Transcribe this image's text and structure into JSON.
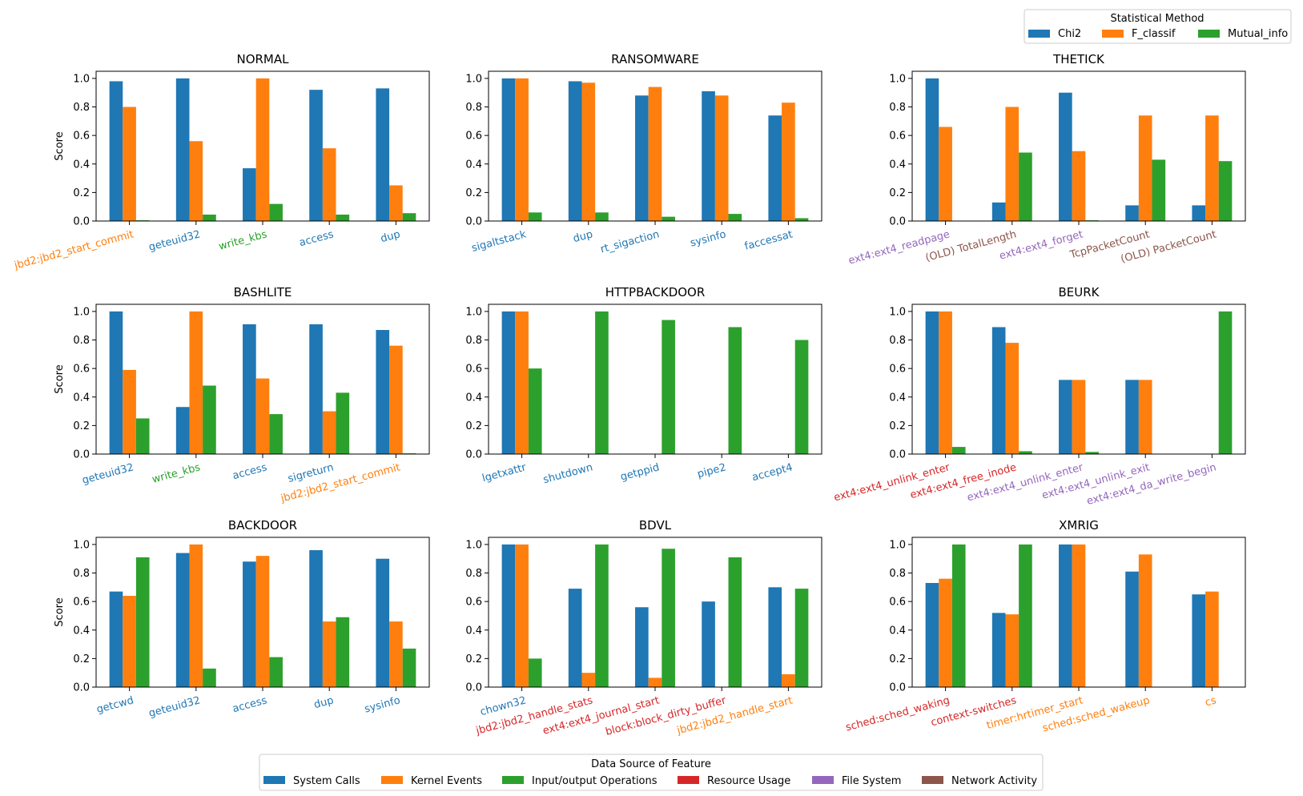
{
  "colors": {
    "chi2": "#1f77b4",
    "f_classif": "#ff7f0e",
    "mutual_info": "#2ca02c",
    "source_system_calls": "#1f77b4",
    "source_kernel_events": "#ff7f0e",
    "source_io_operations": "#2ca02c",
    "source_resource_usage": "#d62728",
    "source_file_system": "#9467bd",
    "source_network_activity": "#8c564b"
  },
  "method_legend": {
    "title": "Statistical Method",
    "entries": [
      {
        "label": "Chi2",
        "color_key": "chi2"
      },
      {
        "label": "F_classif",
        "color_key": "f_classif"
      },
      {
        "label": "Mutual_info",
        "color_key": "mutual_info"
      }
    ]
  },
  "source_legend": {
    "title": "Data Source of Feature",
    "entries": [
      {
        "label": "System Calls",
        "color_key": "source_system_calls"
      },
      {
        "label": "Kernel Events",
        "color_key": "source_kernel_events"
      },
      {
        "label": "Input/output Operations",
        "color_key": "source_io_operations"
      },
      {
        "label": "Resource Usage",
        "color_key": "source_resource_usage"
      },
      {
        "label": "File System",
        "color_key": "source_file_system"
      },
      {
        "label": "Network Activity",
        "color_key": "source_network_activity"
      }
    ]
  },
  "chart_data": [
    {
      "type": "bar",
      "title": "NORMAL",
      "ylabel": "Score",
      "ylim": [
        0,
        1.05
      ],
      "yticks": [
        "0.0",
        "0.2",
        "0.4",
        "0.6",
        "0.8",
        "1.0"
      ],
      "categories": [
        "jbd2:jbd2_start_commit",
        "geteuid32",
        "write_kbs",
        "access",
        "dup"
      ],
      "category_sources": [
        "source_kernel_events",
        "source_system_calls",
        "source_io_operations",
        "source_system_calls",
        "source_system_calls"
      ],
      "series": [
        {
          "name": "Chi2",
          "values": [
            0.98,
            1.0,
            0.37,
            0.92,
            0.93
          ]
        },
        {
          "name": "F_classif",
          "values": [
            0.8,
            0.56,
            1.0,
            0.51,
            0.25
          ]
        },
        {
          "name": "Mutual_info",
          "values": [
            0.005,
            0.045,
            0.12,
            0.045,
            0.055
          ]
        }
      ]
    },
    {
      "type": "bar",
      "title": "RANSOMWARE",
      "ylabel": "",
      "ylim": [
        0,
        1.05
      ],
      "yticks": [
        "0.0",
        "0.2",
        "0.4",
        "0.6",
        "0.8",
        "1.0"
      ],
      "categories": [
        "sigaltstack",
        "dup",
        "rt_sigaction",
        "sysinfo",
        "faccessat"
      ],
      "category_sources": [
        "source_system_calls",
        "source_system_calls",
        "source_system_calls",
        "source_system_calls",
        "source_system_calls"
      ],
      "series": [
        {
          "name": "Chi2",
          "values": [
            1.0,
            0.98,
            0.88,
            0.91,
            0.74
          ]
        },
        {
          "name": "F_classif",
          "values": [
            1.0,
            0.97,
            0.94,
            0.88,
            0.83
          ]
        },
        {
          "name": "Mutual_info",
          "values": [
            0.06,
            0.06,
            0.03,
            0.05,
            0.02
          ]
        }
      ]
    },
    {
      "type": "bar",
      "title": "THETICK",
      "ylabel": "",
      "ylim": [
        0,
        1.05
      ],
      "yticks": [
        "0.0",
        "0.2",
        "0.4",
        "0.6",
        "0.8",
        "1.0"
      ],
      "categories": [
        "ext4:ext4_readpage",
        "(OLD) TotalLength",
        "ext4:ext4_forget",
        "TcpPacketCount",
        "(OLD) PacketCount"
      ],
      "category_sources": [
        "source_file_system",
        "source_network_activity",
        "source_file_system",
        "source_network_activity",
        "source_network_activity"
      ],
      "series": [
        {
          "name": "Chi2",
          "values": [
            1.0,
            0.13,
            0.9,
            0.11,
            0.11
          ]
        },
        {
          "name": "F_classif",
          "values": [
            0.66,
            0.8,
            0.49,
            0.74,
            0.74
          ]
        },
        {
          "name": "Mutual_info",
          "values": [
            0.0,
            0.48,
            0.005,
            0.43,
            0.42
          ]
        }
      ]
    },
    {
      "type": "bar",
      "title": "BASHLITE",
      "ylabel": "Score",
      "ylim": [
        0,
        1.05
      ],
      "yticks": [
        "0.0",
        "0.2",
        "0.4",
        "0.6",
        "0.8",
        "1.0"
      ],
      "categories": [
        "geteuid32",
        "write_kbs",
        "access",
        "sigreturn",
        "jbd2:jbd2_start_commit"
      ],
      "category_sources": [
        "source_system_calls",
        "source_io_operations",
        "source_system_calls",
        "source_system_calls",
        "source_kernel_events"
      ],
      "series": [
        {
          "name": "Chi2",
          "values": [
            1.0,
            0.33,
            0.91,
            0.91,
            0.87
          ]
        },
        {
          "name": "F_classif",
          "values": [
            0.59,
            1.0,
            0.53,
            0.3,
            0.76
          ]
        },
        {
          "name": "Mutual_info",
          "values": [
            0.25,
            0.48,
            0.28,
            0.43,
            0.005
          ]
        }
      ]
    },
    {
      "type": "bar",
      "title": "HTTPBACKDOOR",
      "ylabel": "",
      "ylim": [
        0,
        1.05
      ],
      "yticks": [
        "0.0",
        "0.2",
        "0.4",
        "0.6",
        "0.8",
        "1.0"
      ],
      "categories": [
        "lgetxattr",
        "shutdown",
        "getppid",
        "pipe2",
        "accept4"
      ],
      "category_sources": [
        "source_system_calls",
        "source_system_calls",
        "source_system_calls",
        "source_system_calls",
        "source_system_calls"
      ],
      "series": [
        {
          "name": "Chi2",
          "values": [
            1.0,
            0.0,
            0.0,
            0.0,
            0.0
          ]
        },
        {
          "name": "F_classif",
          "values": [
            1.0,
            0.0,
            0.0,
            0.0,
            0.0
          ]
        },
        {
          "name": "Mutual_info",
          "values": [
            0.6,
            1.0,
            0.94,
            0.89,
            0.8
          ]
        }
      ]
    },
    {
      "type": "bar",
      "title": "BEURK",
      "ylabel": "",
      "ylim": [
        0,
        1.05
      ],
      "yticks": [
        "0.0",
        "0.2",
        "0.4",
        "0.6",
        "0.8",
        "1.0"
      ],
      "categories": [
        "ext4:ext4_unlink_enter",
        "ext4:ext4_free_inode",
        "ext4:ext4_unlink_enter",
        "ext4:ext4_unlink_exit",
        "ext4:ext4_da_write_begin"
      ],
      "category_sources": [
        "source_resource_usage",
        "source_resource_usage",
        "source_file_system",
        "source_file_system",
        "source_file_system"
      ],
      "series": [
        {
          "name": "Chi2",
          "values": [
            1.0,
            0.89,
            0.52,
            0.52,
            0.0
          ]
        },
        {
          "name": "F_classif",
          "values": [
            1.0,
            0.78,
            0.52,
            0.52,
            0.0
          ]
        },
        {
          "name": "Mutual_info",
          "values": [
            0.05,
            0.02,
            0.015,
            0.0,
            1.0
          ]
        }
      ]
    },
    {
      "type": "bar",
      "title": "BACKDOOR",
      "ylabel": "Score",
      "ylim": [
        0,
        1.05
      ],
      "yticks": [
        "0.0",
        "0.2",
        "0.4",
        "0.6",
        "0.8",
        "1.0"
      ],
      "categories": [
        "getcwd",
        "geteuid32",
        "access",
        "dup",
        "sysinfo"
      ],
      "category_sources": [
        "source_system_calls",
        "source_system_calls",
        "source_system_calls",
        "source_system_calls",
        "source_system_calls"
      ],
      "series": [
        {
          "name": "Chi2",
          "values": [
            0.67,
            0.94,
            0.88,
            0.96,
            0.9
          ]
        },
        {
          "name": "F_classif",
          "values": [
            0.64,
            1.0,
            0.92,
            0.46,
            0.46
          ]
        },
        {
          "name": "Mutual_info",
          "values": [
            0.91,
            0.13,
            0.21,
            0.49,
            0.27
          ]
        }
      ]
    },
    {
      "type": "bar",
      "title": "BDVL",
      "ylabel": "",
      "ylim": [
        0,
        1.05
      ],
      "yticks": [
        "0.0",
        "0.2",
        "0.4",
        "0.6",
        "0.8",
        "1.0"
      ],
      "categories": [
        "chown32",
        "jbd2:jbd2_handle_stats",
        "ext4:ext4_journal_start",
        "block:block_dirty_buffer",
        "jbd2:jbd2_handle_start"
      ],
      "category_sources": [
        "source_system_calls",
        "source_resource_usage",
        "source_resource_usage",
        "source_resource_usage",
        "source_kernel_events"
      ],
      "series": [
        {
          "name": "Chi2",
          "values": [
            1.0,
            0.69,
            0.56,
            0.6,
            0.7
          ]
        },
        {
          "name": "F_classif",
          "values": [
            1.0,
            0.1,
            0.065,
            0.0,
            0.09
          ]
        },
        {
          "name": "Mutual_info",
          "values": [
            0.2,
            1.0,
            0.97,
            0.91,
            0.69
          ]
        }
      ]
    },
    {
      "type": "bar",
      "title": "XMRIG",
      "ylabel": "",
      "ylim": [
        0,
        1.05
      ],
      "yticks": [
        "0.0",
        "0.2",
        "0.4",
        "0.6",
        "0.8",
        "1.0"
      ],
      "categories": [
        "sched:sched_waking",
        "context-switches",
        "timer:hrtimer_start",
        "sched:sched_wakeup",
        "cs"
      ],
      "category_sources": [
        "source_resource_usage",
        "source_resource_usage",
        "source_kernel_events",
        "source_kernel_events",
        "source_kernel_events"
      ],
      "series": [
        {
          "name": "Chi2",
          "values": [
            0.73,
            0.52,
            1.0,
            0.81,
            0.65
          ]
        },
        {
          "name": "F_classif",
          "values": [
            0.76,
            0.51,
            1.0,
            0.93,
            0.67
          ]
        },
        {
          "name": "Mutual_info",
          "values": [
            1.0,
            1.0,
            0.0,
            0.0,
            0.0
          ]
        }
      ]
    }
  ]
}
